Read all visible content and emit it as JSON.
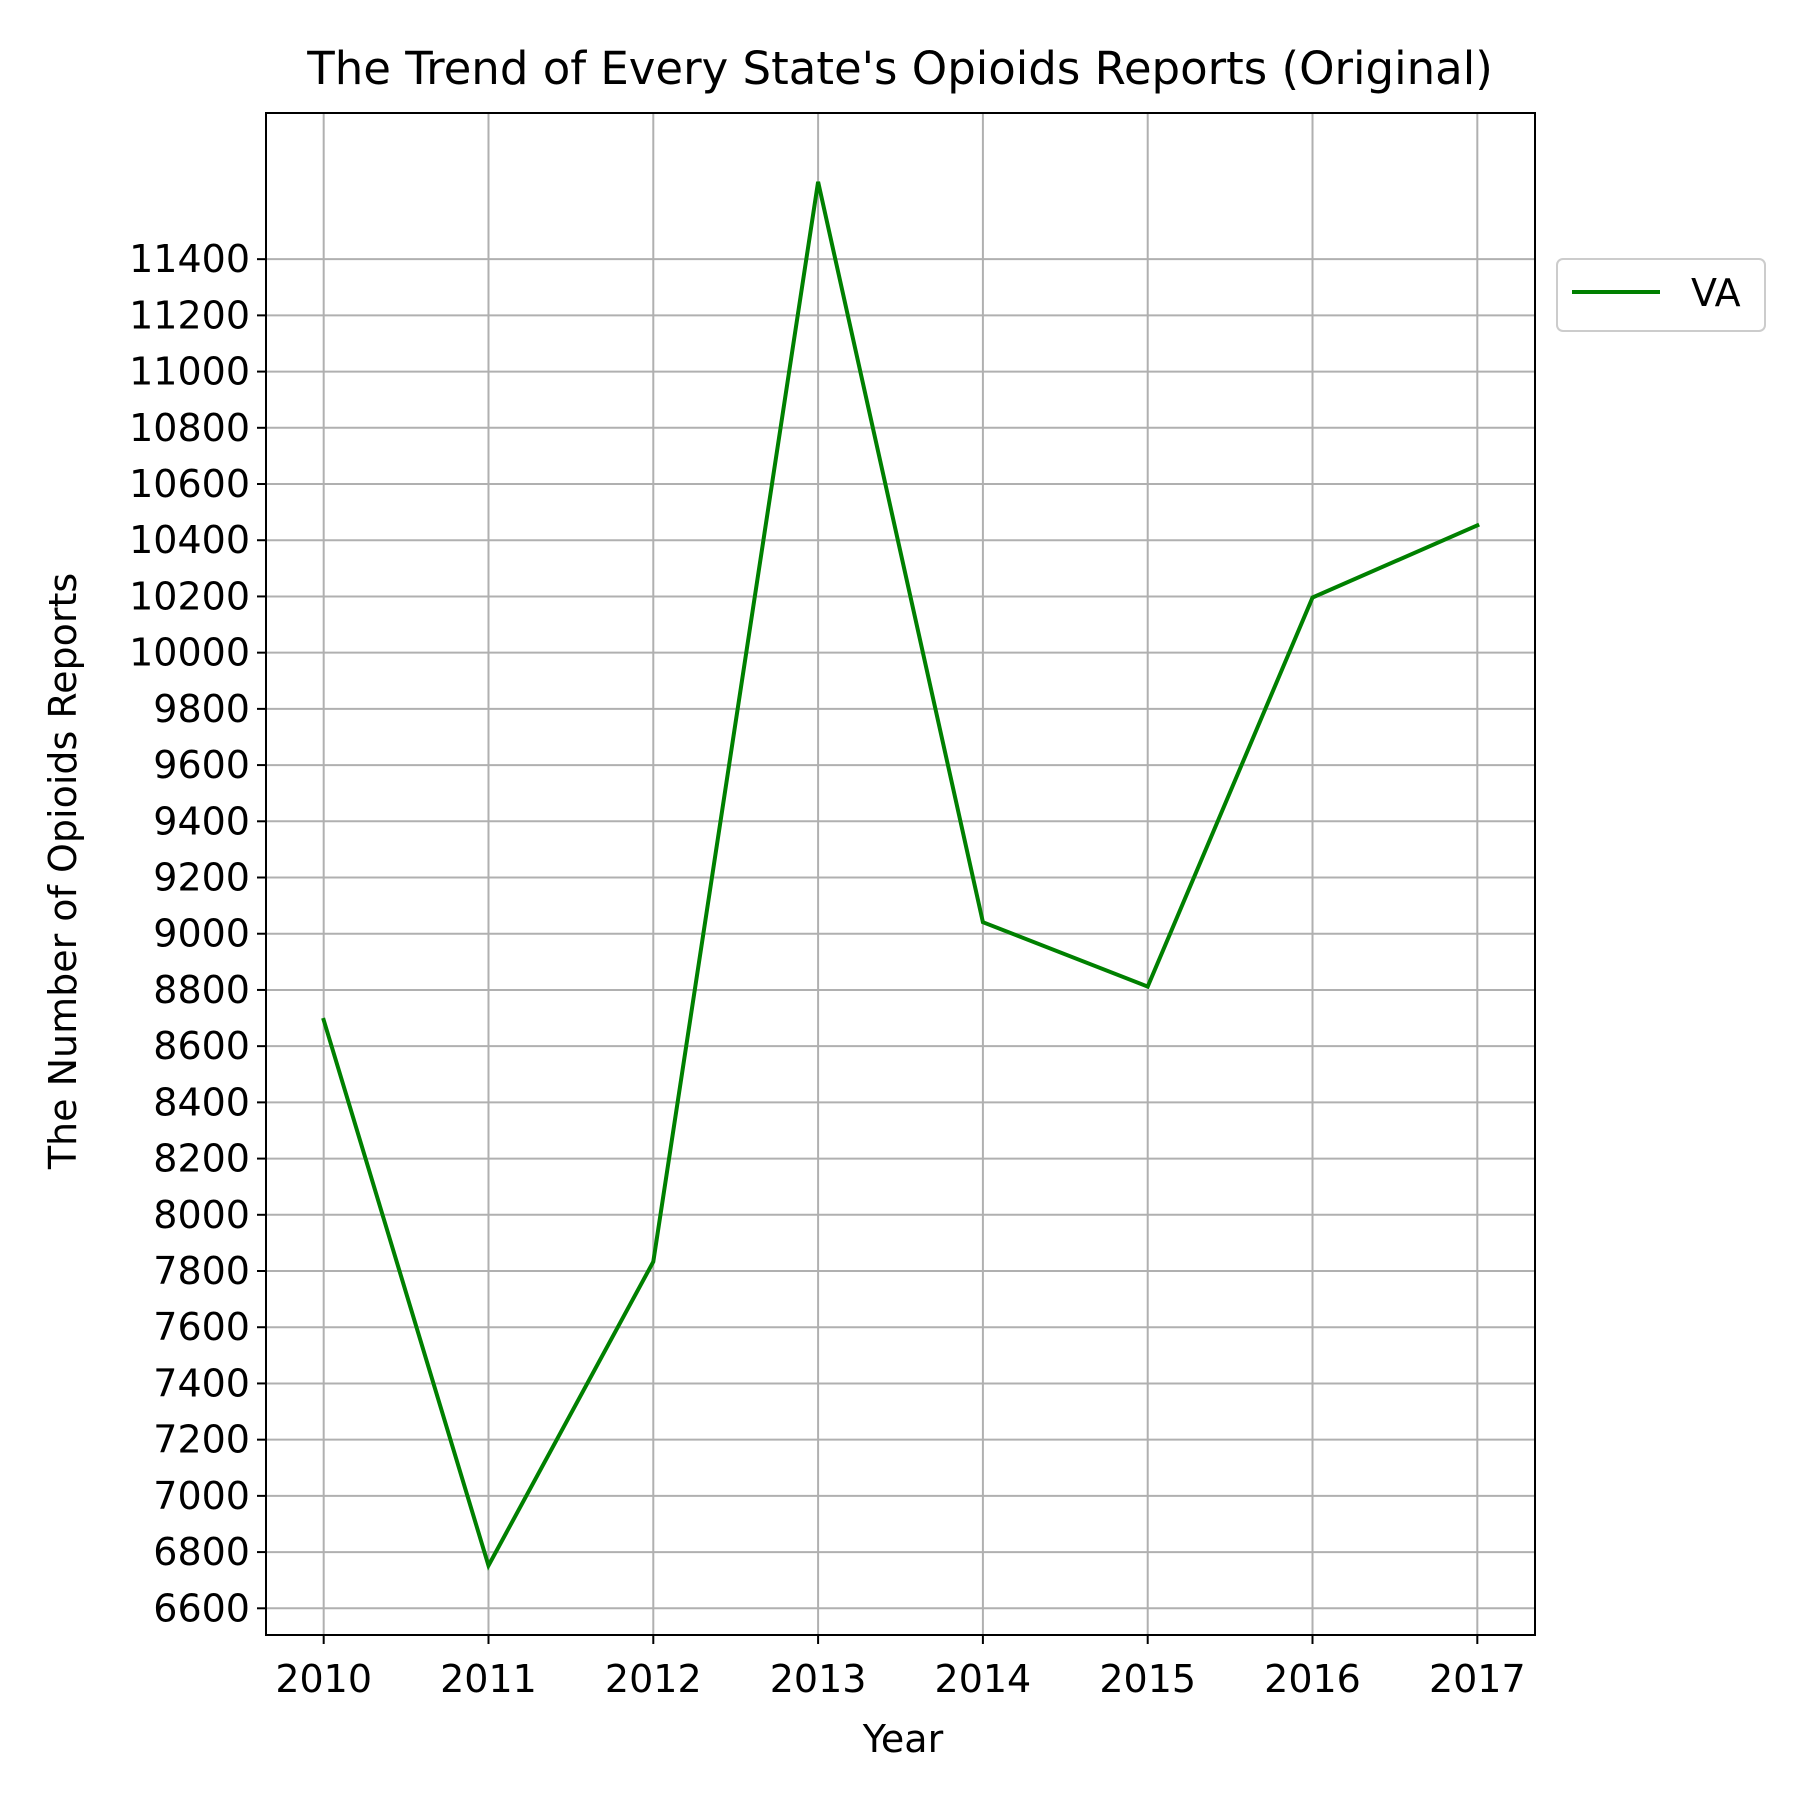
{
  "chart_data": {
    "type": "line",
    "title": "The Trend of Every State's Opioids Reports (Original)",
    "xlabel": "Year",
    "ylabel": "The Number of Opioids Reports",
    "x": [
      2010,
      2011,
      2012,
      2013,
      2014,
      2015,
      2016,
      2017
    ],
    "x_tick_labels": [
      "2010",
      "2011",
      "2012",
      "2013",
      "2014",
      "2015",
      "2016",
      "2017"
    ],
    "y_ticks": [
      6600,
      6800,
      7000,
      7200,
      7400,
      7600,
      7800,
      8000,
      8200,
      8400,
      8600,
      8800,
      9000,
      9200,
      9400,
      9600,
      9800,
      10000,
      10200,
      10400,
      10600,
      10800,
      11000,
      11200,
      11400
    ],
    "ylim": [
      6505,
      11920
    ],
    "xlim": [
      2009.65,
      2017.35
    ],
    "grid": true,
    "legend_position": "outside-upper-right",
    "series": [
      {
        "name": "VA",
        "color": "#008000",
        "values": [
          8693,
          6752,
          7833,
          11675,
          9041,
          8812,
          10196,
          10453
        ]
      }
    ]
  }
}
